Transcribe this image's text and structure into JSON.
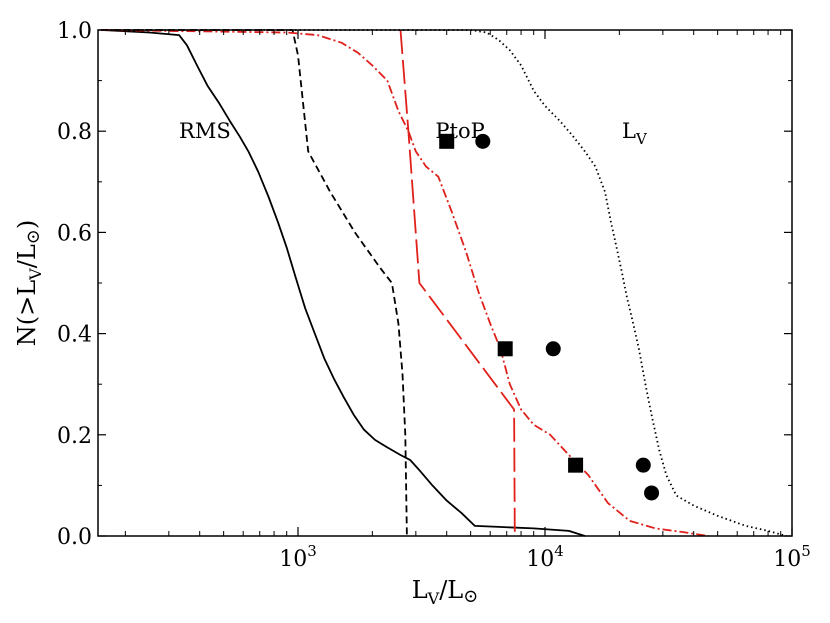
{
  "chart_data": {
    "type": "line",
    "title": "",
    "xlabel_main": "L",
    "xlabel_sub": "V",
    "xlabel_rest": "/L",
    "xlabel_sym": "⊙",
    "ylabel_main": "N(>L",
    "ylabel_sub": "V",
    "ylabel_rest": "/L",
    "ylabel_sym": "⊙",
    "ylabel_close": ")",
    "xscale": "log",
    "xlim": [
      155,
      100000
    ],
    "ylim": [
      0,
      1
    ],
    "xticks": [
      {
        "value": 1000,
        "base": "10",
        "exp": "3"
      },
      {
        "value": 10000,
        "base": "10",
        "exp": "4"
      },
      {
        "value": 100000,
        "base": "10",
        "exp": "5"
      }
    ],
    "yticks": [
      "0.0",
      "0.2",
      "0.4",
      "0.6",
      "0.8",
      "1.0"
    ],
    "annotations": [
      {
        "text": "RMS",
        "x": 330,
        "y": 0.8
      },
      {
        "text": "PtoP",
        "x": 3600,
        "y": 0.8
      },
      {
        "text": "L",
        "sub": "V",
        "x": 20500,
        "y": 0.8
      }
    ],
    "series": [
      {
        "color": "#000000",
        "style": "solid",
        "points": [
          [
            160,
            1.0
          ],
          [
            250,
            0.995
          ],
          [
            330,
            0.99
          ],
          [
            355,
            0.97
          ],
          [
            390,
            0.93
          ],
          [
            430,
            0.89
          ],
          [
            480,
            0.855
          ],
          [
            530,
            0.82
          ],
          [
            580,
            0.79
          ],
          [
            630,
            0.76
          ],
          [
            690,
            0.72
          ],
          [
            760,
            0.67
          ],
          [
            830,
            0.62
          ],
          [
            900,
            0.57
          ],
          [
            980,
            0.51
          ],
          [
            1070,
            0.45
          ],
          [
            1170,
            0.4
          ],
          [
            1280,
            0.35
          ],
          [
            1400,
            0.31
          ],
          [
            1530,
            0.275
          ],
          [
            1680,
            0.24
          ],
          [
            1850,
            0.21
          ],
          [
            2050,
            0.19
          ],
          [
            2300,
            0.175
          ],
          [
            2600,
            0.16
          ],
          [
            2850,
            0.15
          ],
          [
            3100,
            0.13
          ],
          [
            3500,
            0.1
          ],
          [
            4000,
            0.07
          ],
          [
            4600,
            0.045
          ],
          [
            5200,
            0.02
          ],
          [
            6500,
            0.018
          ],
          [
            9000,
            0.015
          ],
          [
            12500,
            0.01
          ],
          [
            14500,
            0.0
          ]
        ]
      },
      {
        "color": "#000000",
        "style": "dashed",
        "points": [
          [
            160,
            1.0
          ],
          [
            950,
            1.0
          ],
          [
            1000,
            0.95
          ],
          [
            1100,
            0.76
          ],
          [
            1350,
            0.68
          ],
          [
            1700,
            0.6
          ],
          [
            2150,
            0.53
          ],
          [
            2400,
            0.5
          ],
          [
            2550,
            0.42
          ],
          [
            2650,
            0.32
          ],
          [
            2720,
            0.2
          ],
          [
            2760,
            0.0
          ]
        ]
      },
      {
        "color": "#e0201b",
        "style": "dashdot",
        "points": [
          [
            160,
            1.0
          ],
          [
            900,
            0.995
          ],
          [
            1200,
            0.99
          ],
          [
            1500,
            0.975
          ],
          [
            1750,
            0.955
          ],
          [
            2000,
            0.93
          ],
          [
            2300,
            0.9
          ],
          [
            2550,
            0.84
          ],
          [
            2800,
            0.8
          ],
          [
            3000,
            0.76
          ],
          [
            3300,
            0.73
          ],
          [
            3700,
            0.71
          ],
          [
            4200,
            0.64
          ],
          [
            4800,
            0.56
          ],
          [
            5400,
            0.48
          ],
          [
            6000,
            0.42
          ],
          [
            6600,
            0.37
          ],
          [
            7200,
            0.3
          ],
          [
            8000,
            0.25
          ],
          [
            9000,
            0.22
          ],
          [
            10500,
            0.2
          ],
          [
            12500,
            0.16
          ],
          [
            15000,
            0.12
          ],
          [
            18000,
            0.065
          ],
          [
            22000,
            0.03
          ],
          [
            28000,
            0.015
          ],
          [
            36000,
            0.008
          ],
          [
            46000,
            0.0
          ]
        ]
      },
      {
        "color": "#e0201b",
        "style": "longdash",
        "points": [
          [
            2600,
            1.0
          ],
          [
            2800,
            0.8
          ],
          [
            3100,
            0.5
          ],
          [
            7500,
            0.25
          ],
          [
            7550,
            0.0
          ]
        ]
      },
      {
        "color": "#000000",
        "style": "dotted",
        "points": [
          [
            160,
            1.0
          ],
          [
            5000,
            1.0
          ],
          [
            5800,
            0.995
          ],
          [
            6500,
            0.98
          ],
          [
            7200,
            0.96
          ],
          [
            8000,
            0.93
          ],
          [
            9000,
            0.88
          ],
          [
            10000,
            0.85
          ],
          [
            11500,
            0.82
          ],
          [
            13000,
            0.79
          ],
          [
            14500,
            0.76
          ],
          [
            16000,
            0.73
          ],
          [
            17500,
            0.68
          ],
          [
            18500,
            0.62
          ],
          [
            19500,
            0.57
          ],
          [
            20500,
            0.52
          ],
          [
            21500,
            0.47
          ],
          [
            22500,
            0.43
          ],
          [
            24000,
            0.37
          ],
          [
            25500,
            0.3
          ],
          [
            27000,
            0.24
          ],
          [
            29000,
            0.17
          ],
          [
            31000,
            0.12
          ],
          [
            34000,
            0.08
          ],
          [
            40000,
            0.06
          ],
          [
            50000,
            0.04
          ],
          [
            65000,
            0.02
          ],
          [
            80000,
            0.01
          ],
          [
            95000,
            0.0
          ]
        ]
      }
    ],
    "markers": [
      {
        "shape": "square",
        "points": [
          [
            4000,
            0.78
          ],
          [
            6900,
            0.37
          ],
          [
            13300,
            0.14
          ]
        ]
      },
      {
        "shape": "circle",
        "points": [
          [
            5600,
            0.78
          ],
          [
            10800,
            0.37
          ],
          [
            25000,
            0.14
          ],
          [
            27000,
            0.085
          ]
        ]
      }
    ]
  }
}
